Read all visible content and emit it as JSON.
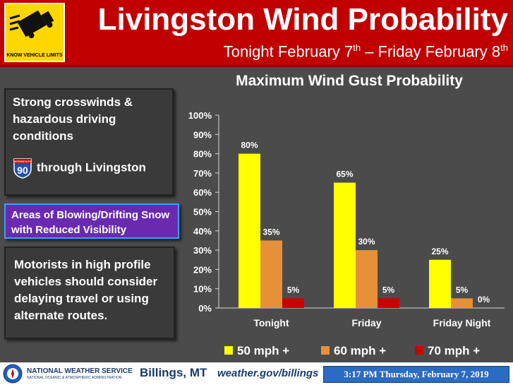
{
  "header": {
    "logo_caption": "KNOW VEHICLE LIMITS",
    "title": "Livingston Wind Probability",
    "subtitle_a": "Tonight February 7",
    "subtitle_sup_a": "th",
    "subtitle_b": " – Friday February 8",
    "subtitle_sup_b": "th"
  },
  "panels": {
    "crosswinds": "Strong crosswinds & hazardous driving conditions",
    "interstate_label": "INTERSTATE",
    "interstate_number": "90",
    "through": "through Livingston",
    "blowing_snow": "Areas of Blowing/Drifting Snow with Reduced Visibility",
    "motorists": "Motorists in high profile vehicles should consider delaying travel or using alternate routes."
  },
  "chart_data": {
    "type": "bar",
    "title": "Maximum Wind Gust Probability",
    "categories": [
      "Tonight",
      "Friday",
      "Friday Night"
    ],
    "series": [
      {
        "name": "50 mph +",
        "color": "#ffff00",
        "values": [
          80,
          65,
          25
        ]
      },
      {
        "name": "60 mph +",
        "color": "#e69138",
        "values": [
          35,
          30,
          5
        ]
      },
      {
        "name": "70 mph +",
        "color": "#cc0000",
        "values": [
          5,
          5,
          0
        ]
      }
    ],
    "ylim": [
      0,
      100
    ],
    "yticks": [
      0,
      10,
      20,
      30,
      40,
      50,
      60,
      70,
      80,
      90,
      100
    ],
    "value_suffix": "%",
    "legend_position": "bottom",
    "grid": false
  },
  "footer": {
    "nws": "NATIONAL WEATHER SERVICE",
    "nws_sub": "NATIONAL OCEANIC & ATMOSPHERIC ADMINISTRATION",
    "office": "Billings, MT",
    "url": "weather.gov/billings",
    "timestamp": "3:17 PM Thursday, February 7, 2019"
  }
}
